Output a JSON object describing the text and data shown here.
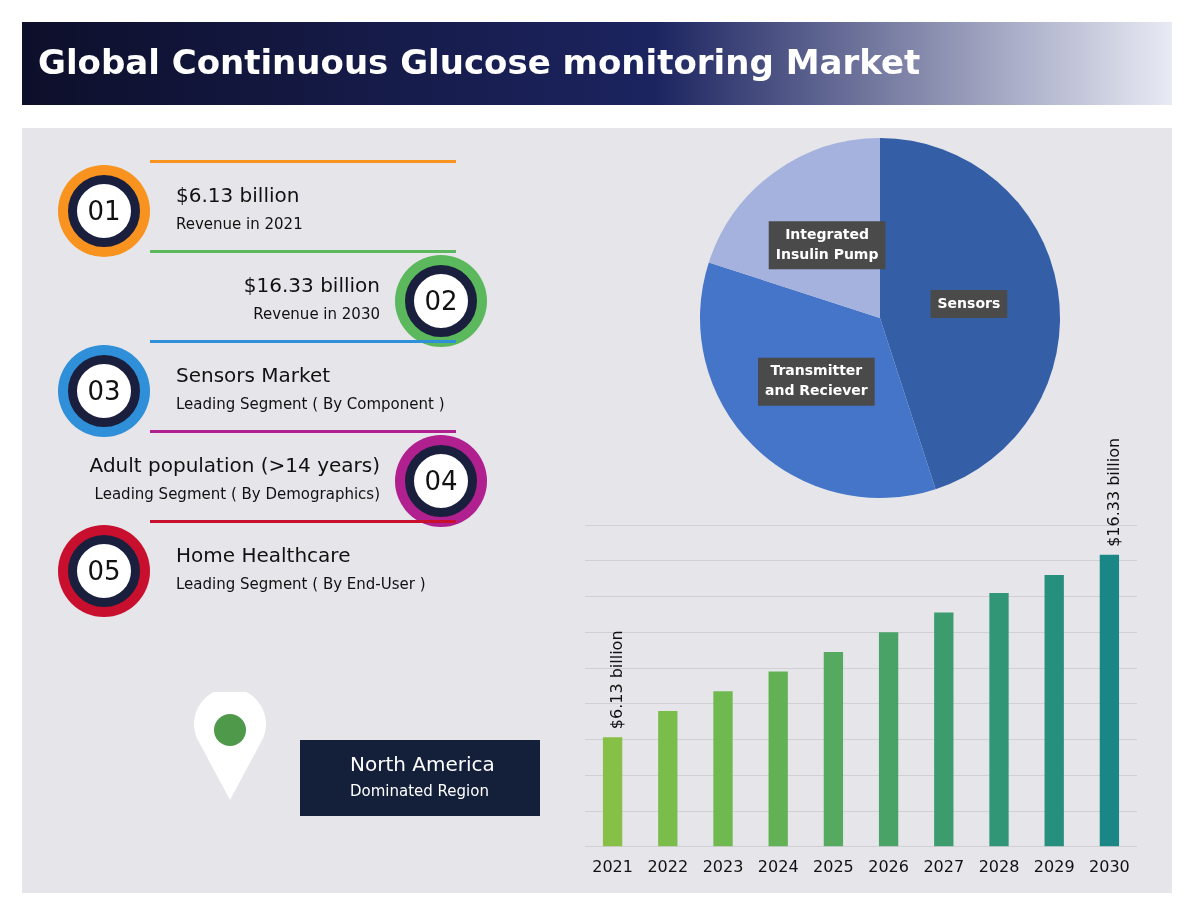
{
  "chart_data": [
    {
      "type": "other",
      "title": "Global Continuous Glucose monitoring Market",
      "annotations": [
        "01",
        "$6.13 billion",
        "Revenue in 2021",
        "02",
        "$16.33 billion",
        "Revenue in 2030",
        "03",
        "Sensors Market",
        "Leading Segment ( By Component )",
        "04",
        "Adult population (>14 years)",
        "Leading Segment ( By Demographics)",
        "05",
        "Home Healthcare",
        "Leading Segment ( By End-User )",
        "North America",
        "Dominated Region"
      ]
    },
    {
      "type": "pie",
      "categories": [
        "Sensors",
        "Transmitter and Reciever",
        "Integrated Insulin Pump"
      ],
      "values": [
        45,
        35,
        20
      ],
      "colors": [
        "#345ea6",
        "#4575c8",
        "#a4b2dd"
      ],
      "legend": false
    },
    {
      "type": "bar",
      "categories": [
        "2021",
        "2022",
        "2023",
        "2024",
        "2025",
        "2026",
        "2027",
        "2028",
        "2029",
        "2030"
      ],
      "values": [
        6.13,
        7.6,
        8.7,
        9.8,
        10.9,
        12.0,
        13.1,
        14.2,
        15.2,
        16.33
      ],
      "colors": [
        "#86c046",
        "#7bbd4b",
        "#70b850",
        "#63b155",
        "#56aa5f",
        "#4aa366",
        "#3d9c6e",
        "#319676",
        "#268f7e",
        "#1b8686"
      ],
      "value_labels": [
        "$6.13 billion",
        null,
        null,
        null,
        null,
        null,
        null,
        null,
        null,
        "$16.33 billion"
      ],
      "ylim": [
        0,
        18
      ],
      "yticks": [
        {
          "value": 0,
          "label": null
        },
        {
          "value": 2,
          "label": null
        },
        {
          "value": 4,
          "label": null
        },
        {
          "value": 6,
          "label": null
        },
        {
          "value": 8,
          "label": null
        },
        {
          "value": 10,
          "label": null
        },
        {
          "value": 12,
          "label": null
        },
        {
          "value": 14,
          "label": null
        },
        {
          "value": 16,
          "label": null
        },
        {
          "value": 18,
          "label": null
        }
      ],
      "grid": "y",
      "tick_labels": "x",
      "legend": false
    }
  ]
}
